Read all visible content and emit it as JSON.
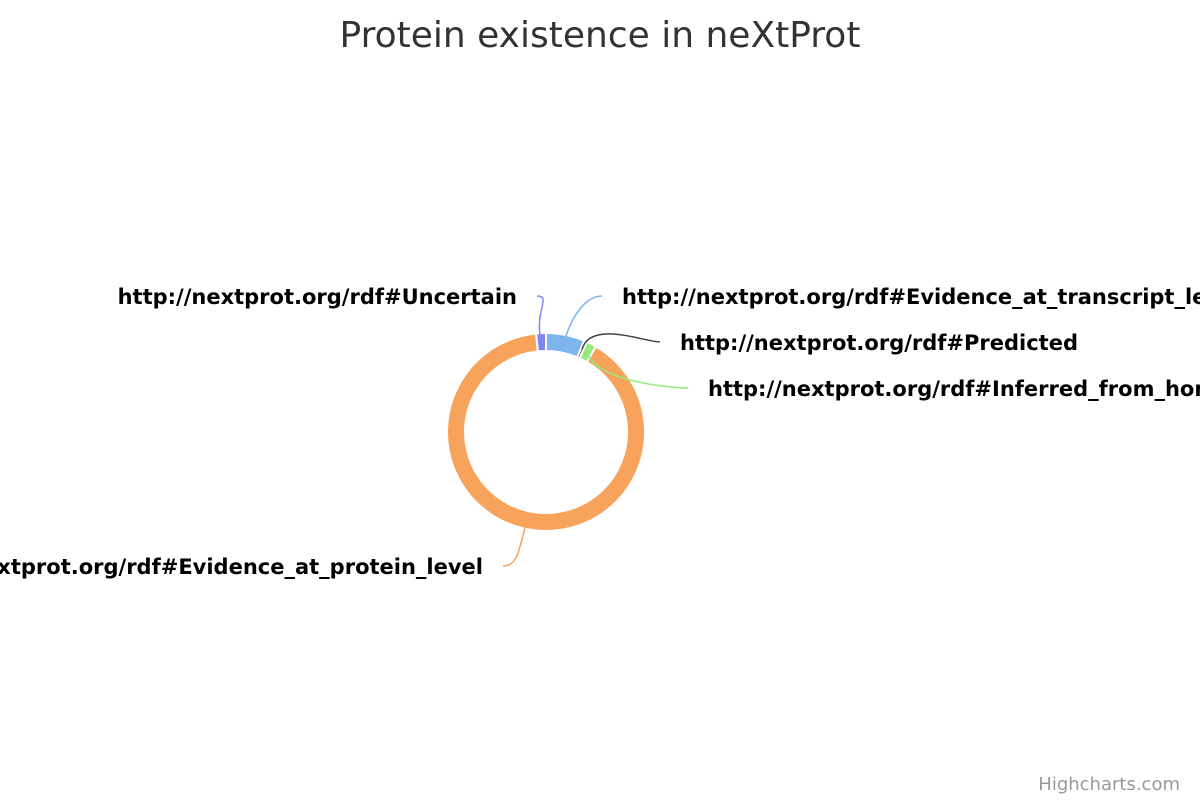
{
  "chart_data": {
    "type": "pie",
    "variant": "donut",
    "title": "Protein existence in neXtProt",
    "slices": [
      {
        "name": "http://nextprot.org/rdf#Evidence_at_transcript_level",
        "value": 6.3,
        "color": "#7cb5ec"
      },
      {
        "name": "http://nextprot.org/rdf#Predicted",
        "value": 0.5,
        "color": "#434348"
      },
      {
        "name": "http://nextprot.org/rdf#Inferred_from_homology",
        "value": 1.6,
        "color": "#90ed7d"
      },
      {
        "name": "http://nextprot.org/rdf#Evidence_at_protein_level",
        "value": 90.0,
        "color": "#f7a35c"
      },
      {
        "name": "http://nextprot.org/rdf#Uncertain",
        "value": 1.6,
        "color": "#8085e9"
      }
    ]
  },
  "credits": "Highcharts.com"
}
